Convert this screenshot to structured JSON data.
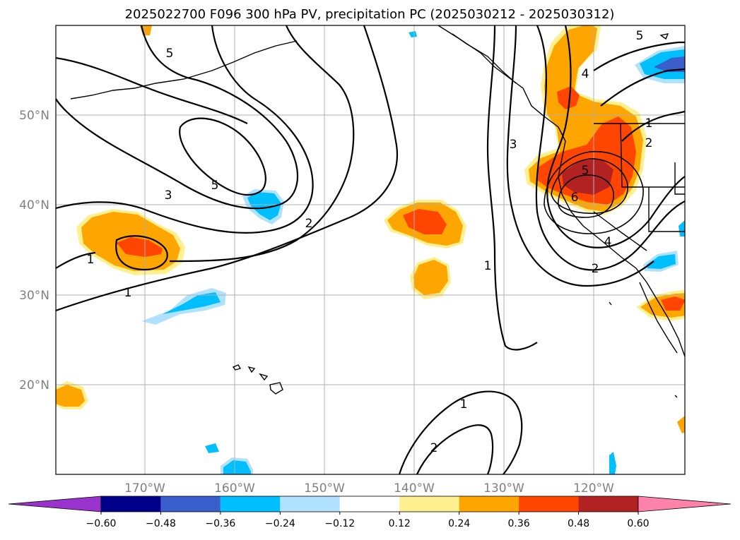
{
  "title": "2025022700 F096 300 hPa PV, precipitation PC (2025030212 - 2025030312)",
  "lon_labels": [
    "170°W",
    "160°W",
    "150°W",
    "140°W",
    "130°W",
    "120°W"
  ],
  "lat_labels": [
    "50°N",
    "40°N",
    "30°N",
    "20°N"
  ],
  "colorbar": {
    "ticks": [
      "−0.60",
      "−0.48",
      "−0.36",
      "−0.24",
      "−0.12",
      "0.12",
      "0.24",
      "0.36",
      "0.48",
      "0.60"
    ],
    "colors": [
      "#9a32cd",
      "#00008b",
      "#3a5fcd",
      "#00bfff",
      "#b0e2ff",
      "#ffffff",
      "#fff08f",
      "#ffa500",
      "#ff4500",
      "#b22222",
      "#ff82ab"
    ]
  },
  "contour_labels": [
    "5",
    "3",
    "5",
    "2",
    "1",
    "1",
    "1",
    "4",
    "3",
    "5",
    "6",
    "4",
    "2",
    "2",
    "5",
    "1",
    "2",
    "1"
  ],
  "palette": {
    "yellow": "#fff08f",
    "orange": "#ffa500",
    "red_orange": "#ff4500",
    "dark_red": "#b22222",
    "deep_sky": "#00bfff",
    "light_blue": "#b0e2ff",
    "royal_blue": "#3a5fcd"
  }
}
